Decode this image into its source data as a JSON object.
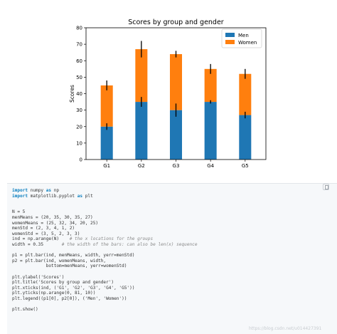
{
  "chart_data": {
    "type": "bar",
    "stacked": true,
    "title": "Scores by group and gender",
    "xlabel": "",
    "ylabel": "Scores",
    "ylim": [
      0,
      80
    ],
    "yticks": [
      0,
      10,
      20,
      30,
      40,
      50,
      60,
      70,
      80
    ],
    "categories": [
      "G1",
      "G2",
      "G3",
      "G4",
      "G5"
    ],
    "legend_position": "top-right",
    "grid": false,
    "series": [
      {
        "name": "Men",
        "color": "#1f77b4",
        "values": [
          20,
          35,
          30,
          35,
          27
        ],
        "errors": [
          2,
          3,
          4,
          1,
          2
        ]
      },
      {
        "name": "Women",
        "color": "#ff7f0e",
        "values": [
          25,
          32,
          34,
          20,
          25
        ],
        "errors": [
          3,
          5,
          2,
          3,
          3
        ]
      }
    ]
  },
  "code": {
    "lines": [
      [
        {
          "t": "import ",
          "c": "kw"
        },
        {
          "t": "numpy ",
          "c": ""
        },
        {
          "t": "as ",
          "c": "kw"
        },
        {
          "t": "np",
          "c": ""
        }
      ],
      [
        {
          "t": "import ",
          "c": "kw"
        },
        {
          "t": "matplotlib.pyplot ",
          "c": ""
        },
        {
          "t": "as ",
          "c": "kw"
        },
        {
          "t": "plt",
          "c": ""
        }
      ],
      [],
      [],
      [
        {
          "t": "N = 5",
          "c": ""
        }
      ],
      [
        {
          "t": "menMeans = (20, 35, 30, 35, 27)",
          "c": ""
        }
      ],
      [
        {
          "t": "womenMeans = (25, 32, 34, 20, 25)",
          "c": ""
        }
      ],
      [
        {
          "t": "menStd = (2, 3, 4, 1, 2)",
          "c": ""
        }
      ],
      [
        {
          "t": "womenStd = (3, 5, 2, 3, 3)",
          "c": ""
        }
      ],
      [
        {
          "t": "ind = np.arange(N)    ",
          "c": ""
        },
        {
          "t": "# the x locations for the groups",
          "c": "cm"
        }
      ],
      [
        {
          "t": "width = 0.35       ",
          "c": ""
        },
        {
          "t": "# the width of the bars: can also be len(x) sequence",
          "c": "cm"
        }
      ],
      [],
      [
        {
          "t": "p1 = plt.bar(ind, menMeans, width, yerr=menStd)",
          "c": ""
        }
      ],
      [
        {
          "t": "p2 = plt.bar(ind, womenMeans, width,",
          "c": ""
        }
      ],
      [
        {
          "t": "             bottom=menMeans, yerr=womenStd)",
          "c": ""
        }
      ],
      [],
      [
        {
          "t": "plt.ylabel('Scores')",
          "c": ""
        }
      ],
      [
        {
          "t": "plt.title('Scores by group and gender')",
          "c": ""
        }
      ],
      [
        {
          "t": "plt.xticks(ind, ('G1', 'G2', 'G3', 'G4', 'G5'))",
          "c": ""
        }
      ],
      [
        {
          "t": "plt.yticks(np.arange(0, 81, 10))",
          "c": ""
        }
      ],
      [
        {
          "t": "plt.legend((p1[0], p2[0]), ('Men', 'Women'))",
          "c": ""
        }
      ],
      [],
      [
        {
          "t": "plt.show()",
          "c": ""
        }
      ]
    ]
  },
  "watermark": "https://blog.csdn.net/u014427391"
}
